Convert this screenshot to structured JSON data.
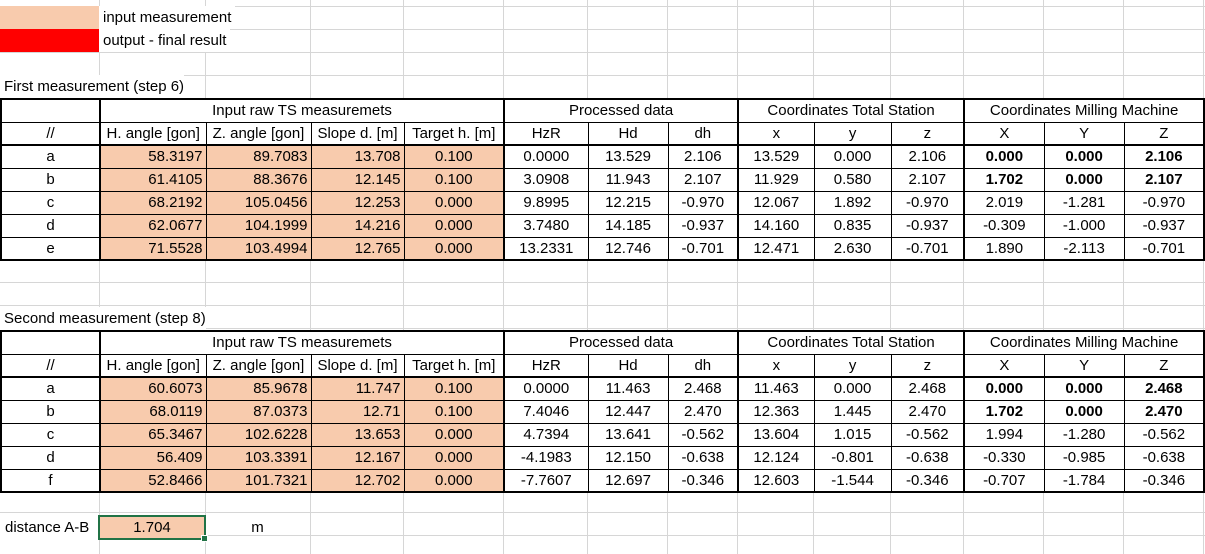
{
  "legend": {
    "input_label": "input measurement",
    "output_label": "output - final result",
    "input_color": "#F8CBAD",
    "output_color": "#FF0000",
    "selection_border_color": "#217346"
  },
  "tables": [
    {
      "title": "First measurement (step 6)",
      "group_headers": [
        "Input raw TS measuremets",
        "Processed data",
        "Coordinates Total Station",
        "Coordinates Milling Machine"
      ],
      "columns": [
        "//",
        "H. angle [gon]",
        "Z. angle [gon]",
        "Slope d. [m]",
        "Target h. [m]",
        "HzR",
        "Hd",
        "dh",
        "x",
        "y",
        "z",
        "X",
        "Y",
        "Z"
      ],
      "rows": [
        {
          "id": "a",
          "values": [
            "58.3197",
            "89.7083",
            "13.708",
            "0.100",
            "0.0000",
            "13.529",
            "2.106",
            "13.529",
            "0.000",
            "2.106",
            "0.000",
            "0.000",
            "2.106"
          ],
          "bold_mm": true
        },
        {
          "id": "b",
          "values": [
            "61.4105",
            "88.3676",
            "12.145",
            "0.100",
            "3.0908",
            "11.943",
            "2.107",
            "11.929",
            "0.580",
            "2.107",
            "1.702",
            "0.000",
            "2.107"
          ],
          "bold_mm": true
        },
        {
          "id": "c",
          "values": [
            "68.2192",
            "105.0456",
            "12.253",
            "0.000",
            "9.8995",
            "12.215",
            "-0.970",
            "12.067",
            "1.892",
            "-0.970",
            "2.019",
            "-1.281",
            "-0.970"
          ],
          "bold_mm": false
        },
        {
          "id": "d",
          "values": [
            "62.0677",
            "104.1999",
            "14.216",
            "0.000",
            "3.7480",
            "14.185",
            "-0.937",
            "14.160",
            "0.835",
            "-0.937",
            "-0.309",
            "-1.000",
            "-0.937"
          ],
          "bold_mm": false
        },
        {
          "id": "e",
          "values": [
            "71.5528",
            "103.4994",
            "12.765",
            "0.000",
            "13.2331",
            "12.746",
            "-0.701",
            "12.471",
            "2.630",
            "-0.701",
            "1.890",
            "-2.113",
            "-0.701"
          ],
          "bold_mm": false
        }
      ]
    },
    {
      "title": "Second measurement (step 8)",
      "group_headers": [
        "Input raw TS measuremets",
        "Processed data",
        "Coordinates Total Station",
        "Coordinates Milling Machine"
      ],
      "columns": [
        "//",
        "H. angle [gon]",
        "Z. angle [gon]",
        "Slope d. [m]",
        "Target h. [m]",
        "HzR",
        "Hd",
        "dh",
        "x",
        "y",
        "z",
        "X",
        "Y",
        "Z"
      ],
      "rows": [
        {
          "id": "a",
          "values": [
            "60.6073",
            "85.9678",
            "11.747",
            "0.100",
            "0.0000",
            "11.463",
            "2.468",
            "11.463",
            "0.000",
            "2.468",
            "0.000",
            "0.000",
            "2.468"
          ],
          "bold_mm": true
        },
        {
          "id": "b",
          "values": [
            "68.0119",
            "87.0373",
            "12.71",
            "0.100",
            "7.4046",
            "12.447",
            "2.470",
            "12.363",
            "1.445",
            "2.470",
            "1.702",
            "0.000",
            "2.470"
          ],
          "bold_mm": true
        },
        {
          "id": "c",
          "values": [
            "65.3467",
            "102.6228",
            "13.653",
            "0.000",
            "4.7394",
            "13.641",
            "-0.562",
            "13.604",
            "1.015",
            "-0.562",
            "1.994",
            "-1.280",
            "-0.562"
          ],
          "bold_mm": false
        },
        {
          "id": "d",
          "values": [
            "56.409",
            "103.3391",
            "12.167",
            "0.000",
            "-4.1983",
            "12.150",
            "-0.638",
            "12.124",
            "-0.801",
            "-0.638",
            "-0.330",
            "-0.985",
            "-0.638"
          ],
          "bold_mm": false
        },
        {
          "id": "f",
          "values": [
            "52.8466",
            "101.7321",
            "12.702",
            "0.000",
            "-7.7607",
            "12.697",
            "-0.346",
            "12.603",
            "-1.544",
            "-0.346",
            "-0.707",
            "-1.784",
            "-0.346"
          ],
          "bold_mm": false
        }
      ]
    }
  ],
  "footer": {
    "label": "distance A-B",
    "value": "1.704",
    "unit": "m"
  }
}
